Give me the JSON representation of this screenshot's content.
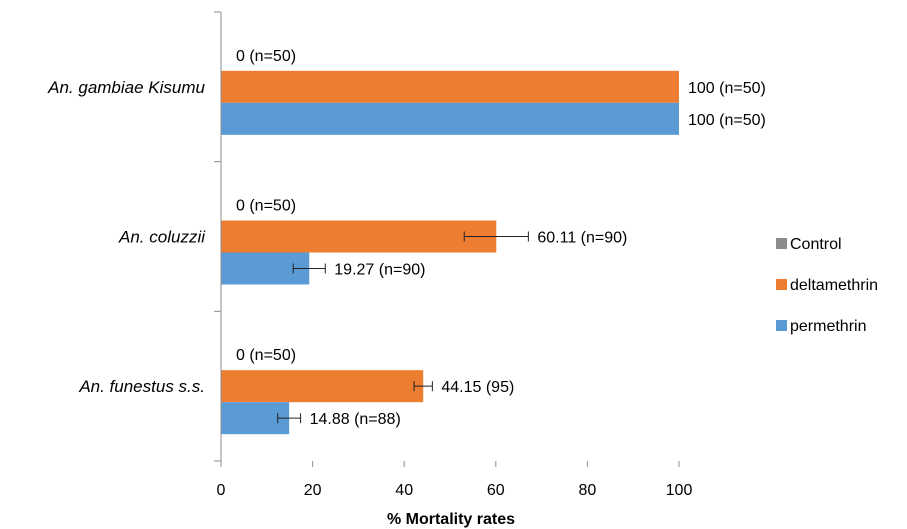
{
  "chart_data": {
    "type": "bar",
    "orientation": "horizontal",
    "categories": [
      "An. gambiae Kisumu",
      "An. coluzzii",
      "An. funestus s.s."
    ],
    "series": [
      {
        "name": "Control",
        "color": "#8c8c8c",
        "values": [
          0,
          0,
          0
        ],
        "labels": [
          "0 (n=50)",
          "0 (n=50)",
          "0 (n=50)"
        ],
        "errors": [
          null,
          null,
          null
        ]
      },
      {
        "name": "deltamethrin",
        "color": "#ed7d31",
        "values": [
          100,
          60.11,
          44.15
        ],
        "labels": [
          "100 (n=50)",
          "60.11 (n=90)",
          "44.15 (95)"
        ],
        "errors": [
          null,
          7,
          2
        ]
      },
      {
        "name": "permethrin",
        "color": "#5b9bd5",
        "values": [
          100,
          19.27,
          14.88
        ],
        "labels": [
          "100 (n=50)",
          "19.27 (n=90)",
          "14.88 (n=88)"
        ],
        "errors": [
          null,
          3.5,
          2.5
        ]
      }
    ],
    "xlabel": "% Mortality rates",
    "ylabel": "",
    "xlim": [
      0,
      100
    ],
    "xticks": [
      0,
      20,
      40,
      60,
      80,
      100
    ],
    "grid": false,
    "legend_position": "right"
  }
}
